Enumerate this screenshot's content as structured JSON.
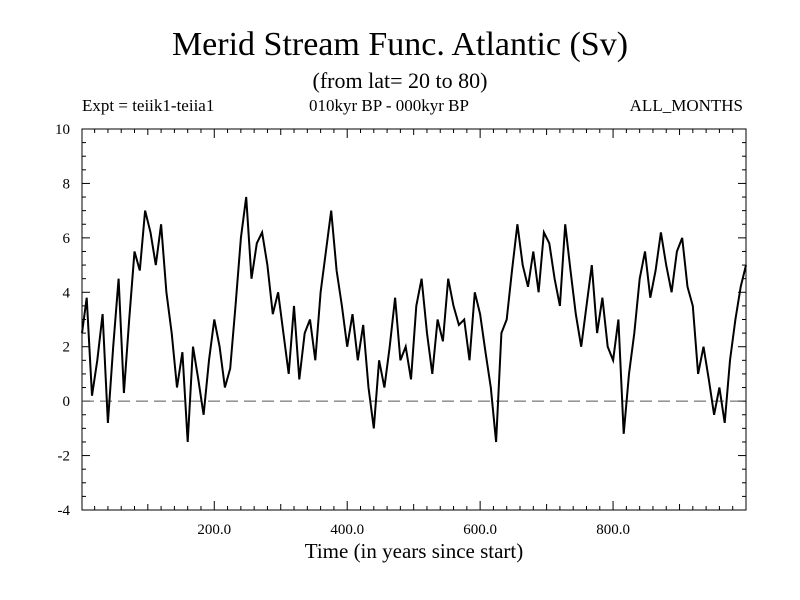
{
  "header": {
    "title": "Merid Stream Func. Atlantic (Sv)",
    "subtitle": "(from lat= 20 to 80)",
    "experiment": "Expt = teiik1-teiia1",
    "period": "010kyr BP - 000kyr BP",
    "months": "ALL_MONTHS"
  },
  "chart_data": {
    "type": "line",
    "title": "Merid Stream Func. Atlantic (Sv)",
    "xlabel": "Time (in years since start)",
    "ylabel": "",
    "xlim": [
      1,
      1000
    ],
    "ylim": [
      -4,
      10
    ],
    "x_ticks": [
      200,
      400,
      600,
      800
    ],
    "x_tick_labels": [
      "200.0",
      "400.0",
      "600.0",
      "800.0"
    ],
    "y_ticks": [
      -4,
      -2,
      0,
      2,
      4,
      6,
      8,
      10
    ],
    "y_tick_labels": [
      "-4",
      "-2",
      "0",
      "2",
      "4",
      "6",
      "8",
      "10"
    ],
    "reference_line": {
      "y": 0,
      "style": "dashed"
    },
    "series": [
      {
        "x": [
          1,
          8,
          16,
          24,
          32,
          40,
          48,
          56,
          64,
          72,
          80,
          88,
          96,
          104,
          112,
          120,
          128,
          136,
          144,
          152,
          160,
          168,
          176,
          184,
          192,
          200,
          208,
          216,
          224,
          232,
          240,
          248,
          256,
          264,
          272,
          280,
          288,
          296,
          304,
          312,
          320,
          328,
          336,
          344,
          352,
          360,
          368,
          376,
          384,
          392,
          400,
          408,
          416,
          424,
          432,
          440,
          448,
          456,
          464,
          472,
          480,
          488,
          496,
          504,
          512,
          520,
          528,
          536,
          544,
          552,
          560,
          568,
          576,
          584,
          592,
          600,
          608,
          616,
          624,
          632,
          640,
          648,
          656,
          664,
          672,
          680,
          688,
          696,
          704,
          712,
          720,
          728,
          736,
          744,
          752,
          760,
          768,
          776,
          784,
          792,
          800,
          808,
          816,
          824,
          832,
          840,
          848,
          856,
          864,
          872,
          880,
          888,
          896,
          904,
          912,
          920,
          928,
          936,
          944,
          952,
          960,
          968,
          976,
          984,
          992,
          1000
        ],
        "y": [
          2.5,
          3.8,
          0.2,
          1.5,
          3.2,
          -0.8,
          2.0,
          4.5,
          0.3,
          3.0,
          5.5,
          4.8,
          7.0,
          6.2,
          5.0,
          6.5,
          4.0,
          2.5,
          0.5,
          1.8,
          -1.5,
          2.0,
          0.8,
          -0.5,
          1.5,
          3.0,
          2.0,
          0.5,
          1.2,
          3.5,
          6.0,
          7.5,
          4.5,
          5.8,
          6.2,
          5.0,
          3.2,
          4.0,
          2.5,
          1.0,
          3.5,
          0.8,
          2.5,
          3.0,
          1.5,
          4.0,
          5.5,
          7.0,
          4.8,
          3.5,
          2.0,
          3.2,
          1.5,
          2.8,
          0.5,
          -1.0,
          1.5,
          0.5,
          2.0,
          3.8,
          1.5,
          2.0,
          0.8,
          3.5,
          4.5,
          2.5,
          1.0,
          3.0,
          2.2,
          4.5,
          3.5,
          2.8,
          3.0,
          1.5,
          4.0,
          3.2,
          1.8,
          0.5,
          -1.5,
          2.5,
          3.0,
          4.8,
          6.5,
          5.0,
          4.2,
          5.5,
          4.0,
          6.2,
          5.8,
          4.5,
          3.5,
          6.5,
          4.8,
          3.2,
          2.0,
          3.5,
          5.0,
          2.5,
          3.8,
          2.0,
          1.5,
          3.0,
          -1.2,
          1.0,
          2.5,
          4.5,
          5.5,
          3.8,
          4.8,
          6.2,
          5.0,
          4.0,
          5.5,
          6.0,
          4.2,
          3.5,
          1.0,
          2.0,
          0.8,
          -0.5,
          0.5,
          -0.8,
          1.5,
          3.0,
          4.2,
          5.0
        ]
      }
    ]
  }
}
